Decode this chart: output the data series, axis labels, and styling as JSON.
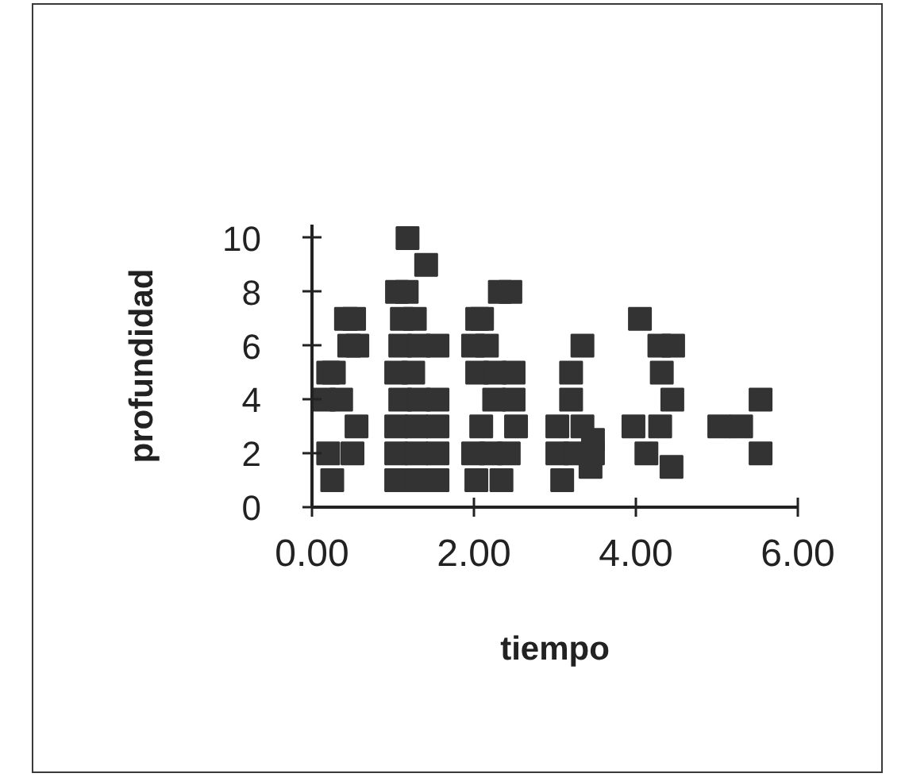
{
  "chart_data": {
    "type": "scatter",
    "xlabel": "tiempo",
    "ylabel": "profundidad",
    "xlim": [
      0,
      6
    ],
    "ylim": [
      0,
      10.5
    ],
    "xticks": [
      {
        "value": 0,
        "label": "0.00"
      },
      {
        "value": 2,
        "label": "2.00"
      },
      {
        "value": 4,
        "label": "4.00"
      },
      {
        "value": 6,
        "label": "6.00"
      }
    ],
    "yticks": [
      0,
      2,
      4,
      6,
      8,
      10
    ],
    "marker": "square",
    "color": "#333333",
    "x": [
      1.18,
      1.41,
      1.05,
      1.17,
      2.32,
      2.45,
      0.42,
      0.52,
      1.11,
      1.27,
      2.04,
      2.1,
      4.05,
      0.46,
      0.56,
      1.09,
      1.32,
      1.55,
      1.99,
      2.16,
      3.34,
      4.29,
      4.46,
      0.2,
      0.27,
      1.04,
      1.25,
      2.04,
      2.26,
      2.49,
      3.2,
      4.32,
      0.15,
      0.36,
      1.09,
      1.32,
      1.55,
      2.25,
      2.49,
      3.2,
      4.45,
      5.54,
      0.55,
      1.04,
      1.29,
      1.55,
      2.09,
      2.52,
      3.03,
      3.34,
      3.97,
      4.3,
      5.03,
      5.3,
      3.47,
      0.2,
      0.5,
      1.04,
      1.29,
      1.55,
      1.99,
      2.21,
      2.43,
      3.03,
      3.25,
      3.47,
      4.13,
      5.54,
      3.44,
      4.44,
      0.25,
      1.04,
      1.29,
      1.55,
      2.03,
      2.34,
      3.09
    ],
    "values": [
      10,
      9,
      8,
      8,
      8,
      8,
      7,
      7,
      7,
      7,
      7,
      7,
      7,
      6,
      6,
      6,
      6,
      6,
      6,
      6,
      6,
      6,
      6,
      5,
      5,
      5,
      5,
      5,
      5,
      5,
      5,
      5,
      4,
      4,
      4,
      4,
      4,
      4,
      4,
      4,
      4,
      4,
      3,
      3,
      3,
      3,
      3,
      3,
      3,
      3,
      3,
      3,
      3,
      3,
      2.5,
      2,
      2,
      2,
      2,
      2,
      2,
      2,
      2,
      2,
      2,
      2,
      2,
      2,
      1.5,
      1.5,
      1,
      1,
      1,
      1,
      1,
      1,
      1
    ]
  }
}
